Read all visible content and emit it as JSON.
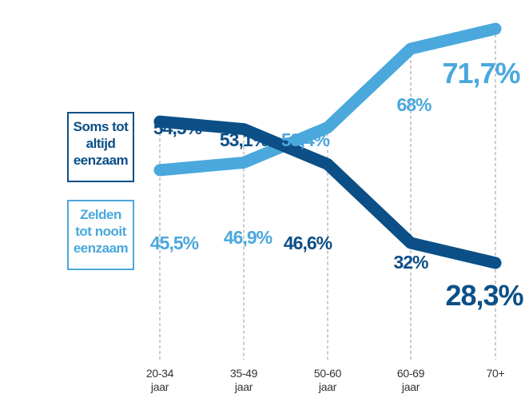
{
  "chart_data": {
    "type": "line",
    "categories": [
      [
        "20-34",
        "jaar"
      ],
      [
        "35-49",
        "jaar"
      ],
      [
        "50-60",
        "jaar"
      ],
      [
        "60-69",
        "jaar"
      ],
      [
        "70+"
      ]
    ],
    "ylim": [
      0,
      100
    ],
    "grid": "vertical dashed",
    "series": [
      {
        "name": [
          "Soms tot",
          "altijd",
          "eenzaam"
        ],
        "color": "#0b4f86",
        "values": [
          54.5,
          53.1,
          46.6,
          32,
          28.3
        ],
        "labels": [
          "54,5%",
          "53,1%",
          "46,6%",
          "32%",
          "28,3%"
        ]
      },
      {
        "name": [
          "Zelden",
          "tot nooit",
          "eenzaam"
        ],
        "color": "#4aa8dc",
        "values": [
          45.5,
          46.9,
          53.4,
          68,
          71.7
        ],
        "labels": [
          "45,5%",
          "46,9%",
          "53,4%",
          "68%",
          "71,7%"
        ]
      }
    ]
  }
}
